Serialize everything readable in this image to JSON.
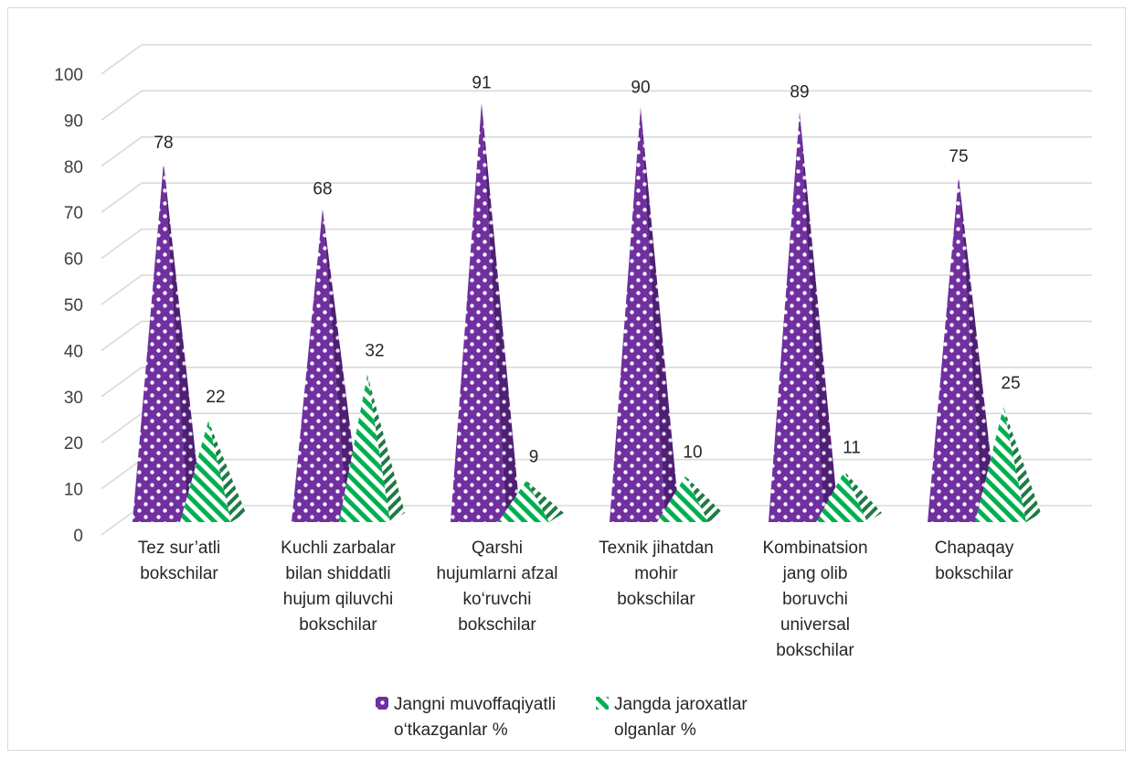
{
  "chart_data": {
    "type": "bar",
    "variant": "3d-pyramid",
    "title": "",
    "xlabel": "",
    "ylabel": "",
    "ylim": [
      0,
      100
    ],
    "yticks": [
      0,
      10,
      20,
      30,
      40,
      50,
      60,
      70,
      80,
      90,
      100
    ],
    "grid": true,
    "legend_position": "bottom",
    "categories": [
      [
        "Tez sur’atli",
        "bokschilar"
      ],
      [
        "Kuchli zarbalar",
        "bilan shiddatli",
        "hujum qiluvchi",
        "bokschilar"
      ],
      [
        "Qarshi",
        "hujumlarni afzal",
        "ko‘ruvchi",
        "bokschilar"
      ],
      [
        "Texnik jihatdan",
        "mohir",
        "bokschilar"
      ],
      [
        "Kombinatsion",
        "jang olib",
        "boruvchi",
        "universal",
        "bokschilar"
      ],
      [
        "Chapaqay",
        "bokschilar"
      ]
    ],
    "series": [
      {
        "name": [
          "Jangni muvoffaqiyatli",
          "o‘tkazganlar %"
        ],
        "color": "#7030a0",
        "pattern": "checker",
        "values": [
          78,
          68,
          91,
          90,
          89,
          75
        ]
      },
      {
        "name": [
          "Jangda jaroxatlar",
          "olganlar %"
        ],
        "color": "#00b050",
        "pattern": "diagonal-stripes",
        "values": [
          22,
          32,
          9,
          10,
          11,
          25
        ]
      }
    ]
  }
}
